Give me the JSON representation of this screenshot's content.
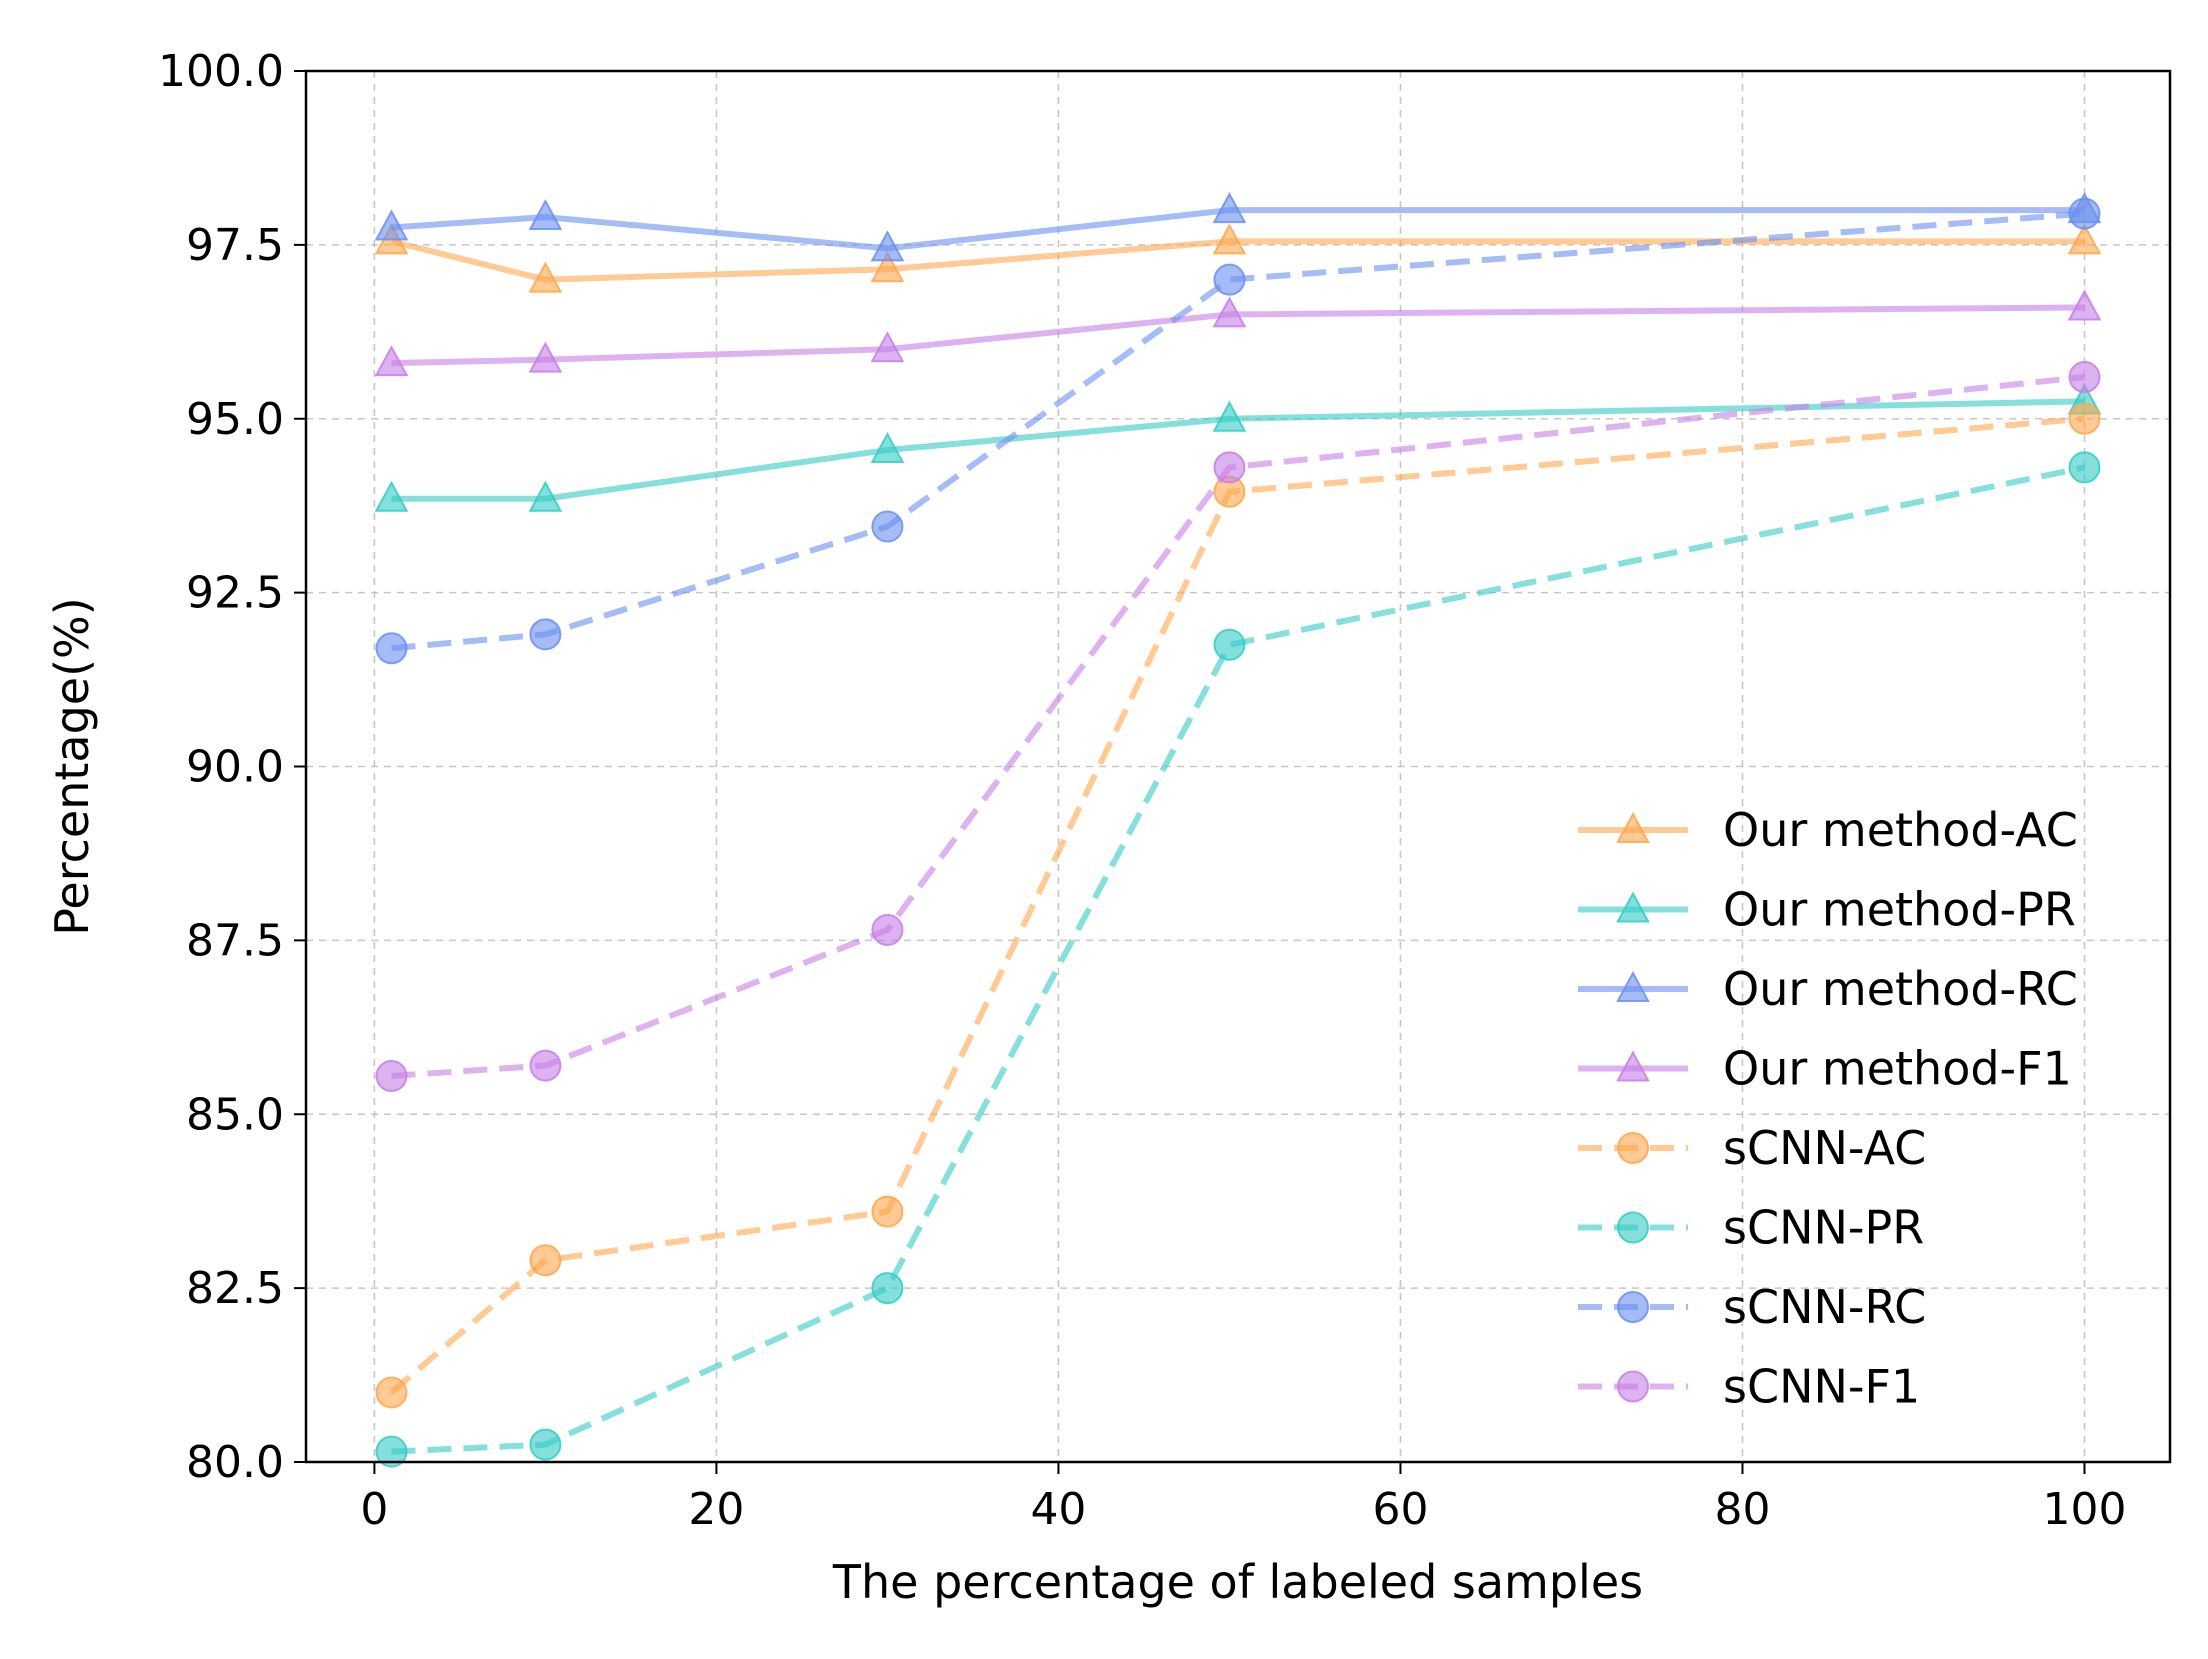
{
  "chart_data": {
    "type": "line",
    "title": "",
    "xlabel": "The percentage of labeled samples",
    "ylabel": "Percentage(%)",
    "xlim": [
      -4,
      105
    ],
    "ylim": [
      80.0,
      100.0
    ],
    "xticks": [
      0,
      20,
      40,
      60,
      80,
      100
    ],
    "xtick_labels": [
      "0",
      "20",
      "40",
      "60",
      "80",
      "100"
    ],
    "yticks": [
      80.0,
      82.5,
      85.0,
      87.5,
      90.0,
      92.5,
      95.0,
      97.5,
      100.0
    ],
    "ytick_labels": [
      "80.0",
      "82.5",
      "85.0",
      "87.5",
      "90.0",
      "92.5",
      "95.0",
      "97.5",
      "100.0"
    ],
    "grid": true,
    "legend_position": "center-right",
    "x": [
      1,
      10,
      30,
      50,
      100
    ],
    "series": [
      {
        "name": "Our method-AC",
        "color": "#ffa64d",
        "style": "solid",
        "marker": "triangle",
        "values": [
          97.55,
          97.0,
          97.15,
          97.55,
          97.55
        ]
      },
      {
        "name": "Our method-PR",
        "color": "#33ccc4",
        "style": "solid",
        "marker": "triangle",
        "values": [
          93.85,
          93.85,
          94.55,
          95.0,
          95.25
        ]
      },
      {
        "name": "Our method-RC",
        "color": "#6b8ff0",
        "style": "solid",
        "marker": "triangle",
        "values": [
          97.75,
          97.9,
          97.45,
          98.0,
          98.0
        ]
      },
      {
        "name": "Our method-F1",
        "color": "#c77ee6",
        "style": "solid",
        "marker": "triangle",
        "values": [
          95.8,
          95.85,
          96.0,
          96.5,
          96.6
        ]
      },
      {
        "name": "sCNN-AC",
        "color": "#ffa64d",
        "style": "dashed",
        "marker": "circle",
        "values": [
          81.0,
          82.9,
          83.6,
          93.95,
          95.0
        ]
      },
      {
        "name": "sCNN-PR",
        "color": "#33ccc4",
        "style": "dashed",
        "marker": "circle",
        "values": [
          80.15,
          80.25,
          82.5,
          91.75,
          94.3
        ]
      },
      {
        "name": "sCNN-RC",
        "color": "#6b8ff0",
        "style": "dashed",
        "marker": "circle",
        "values": [
          91.7,
          91.9,
          93.45,
          97.0,
          97.95
        ]
      },
      {
        "name": "sCNN-F1",
        "color": "#c77ee6",
        "style": "dashed",
        "marker": "circle",
        "values": [
          85.55,
          85.7,
          87.65,
          94.3,
          95.6
        ]
      }
    ]
  }
}
